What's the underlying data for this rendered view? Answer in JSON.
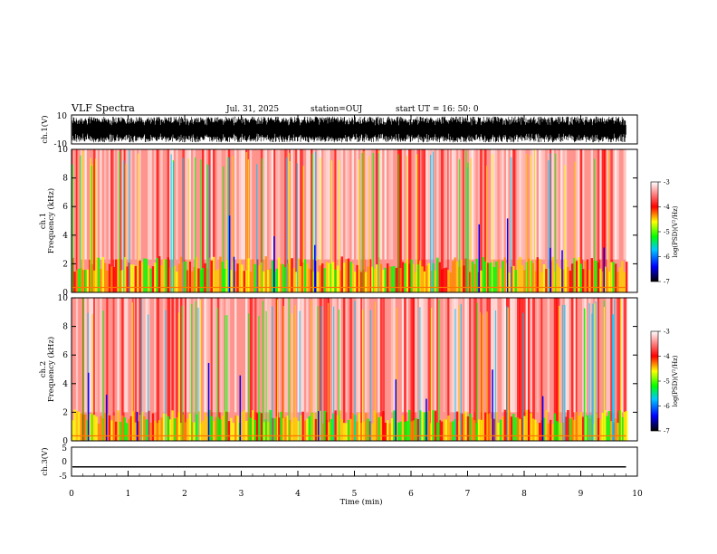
{
  "header": {
    "title": "VLF Spectra",
    "date": "Jul. 31, 2025",
    "station": "station=OUJ",
    "start": "start UT =  16: 50: 0"
  },
  "chart_data": [
    {
      "id": "ch1-waveform",
      "type": "line",
      "ylabel": "ch.1(V)",
      "ylim": [
        -10,
        10
      ],
      "y_tick_labels": [
        "10",
        "-10"
      ],
      "xlim": [
        0,
        10
      ],
      "data_extent_min": 9.8,
      "description_of_signal": "noisy broadband waveform, amplitude up to full scale"
    },
    {
      "id": "ch1-spectrogram",
      "type": "heatmap",
      "ylabel": "Frequency (kHz)",
      "panel_label": "ch.1",
      "ylim": [
        0,
        10
      ],
      "y_tick_labels": [
        "0",
        "2",
        "4",
        "6",
        "8",
        "10"
      ],
      "xlim": [
        0,
        10
      ],
      "colorbar": {
        "label": "log(PSD)(V²/Hz)",
        "range": [
          -7,
          -3
        ],
        "tick_labels": [
          "-3",
          "-4",
          "-5",
          "-6",
          "-7"
        ]
      }
    },
    {
      "id": "ch2-spectrogram",
      "type": "heatmap",
      "ylabel": "Frequency (kHz)",
      "panel_label": "ch.2",
      "ylim": [
        0,
        10
      ],
      "y_tick_labels": [
        "0",
        "2",
        "4",
        "6",
        "8",
        "10"
      ],
      "xlim": [
        0,
        10
      ],
      "colorbar": {
        "label": "log(PSD)(V²/Hz)",
        "range": [
          -7,
          -3
        ],
        "tick_labels": [
          "-3",
          "-4",
          "-5",
          "-6",
          "-7"
        ]
      }
    },
    {
      "id": "ch3-waveform",
      "type": "line",
      "ylabel": "ch.3(V)",
      "ylim": [
        -5,
        5
      ],
      "y_tick_labels": [
        "5",
        "0",
        "-5"
      ],
      "x": [
        0,
        9.8
      ],
      "y": [
        -1.8,
        -1.8
      ],
      "xlim": [
        0,
        10
      ],
      "xlabel": "Time (min)",
      "x_tick_labels": [
        "0",
        "1",
        "2",
        "3",
        "4",
        "5",
        "6",
        "7",
        "8",
        "9",
        "10"
      ]
    }
  ],
  "colors": {
    "axis": "#000000",
    "background": "#ffffff",
    "colormap": [
      "#000000",
      "#0000ff",
      "#00c8ff",
      "#00ff00",
      "#ffff00",
      "#ff0000",
      "#ffffff"
    ]
  }
}
